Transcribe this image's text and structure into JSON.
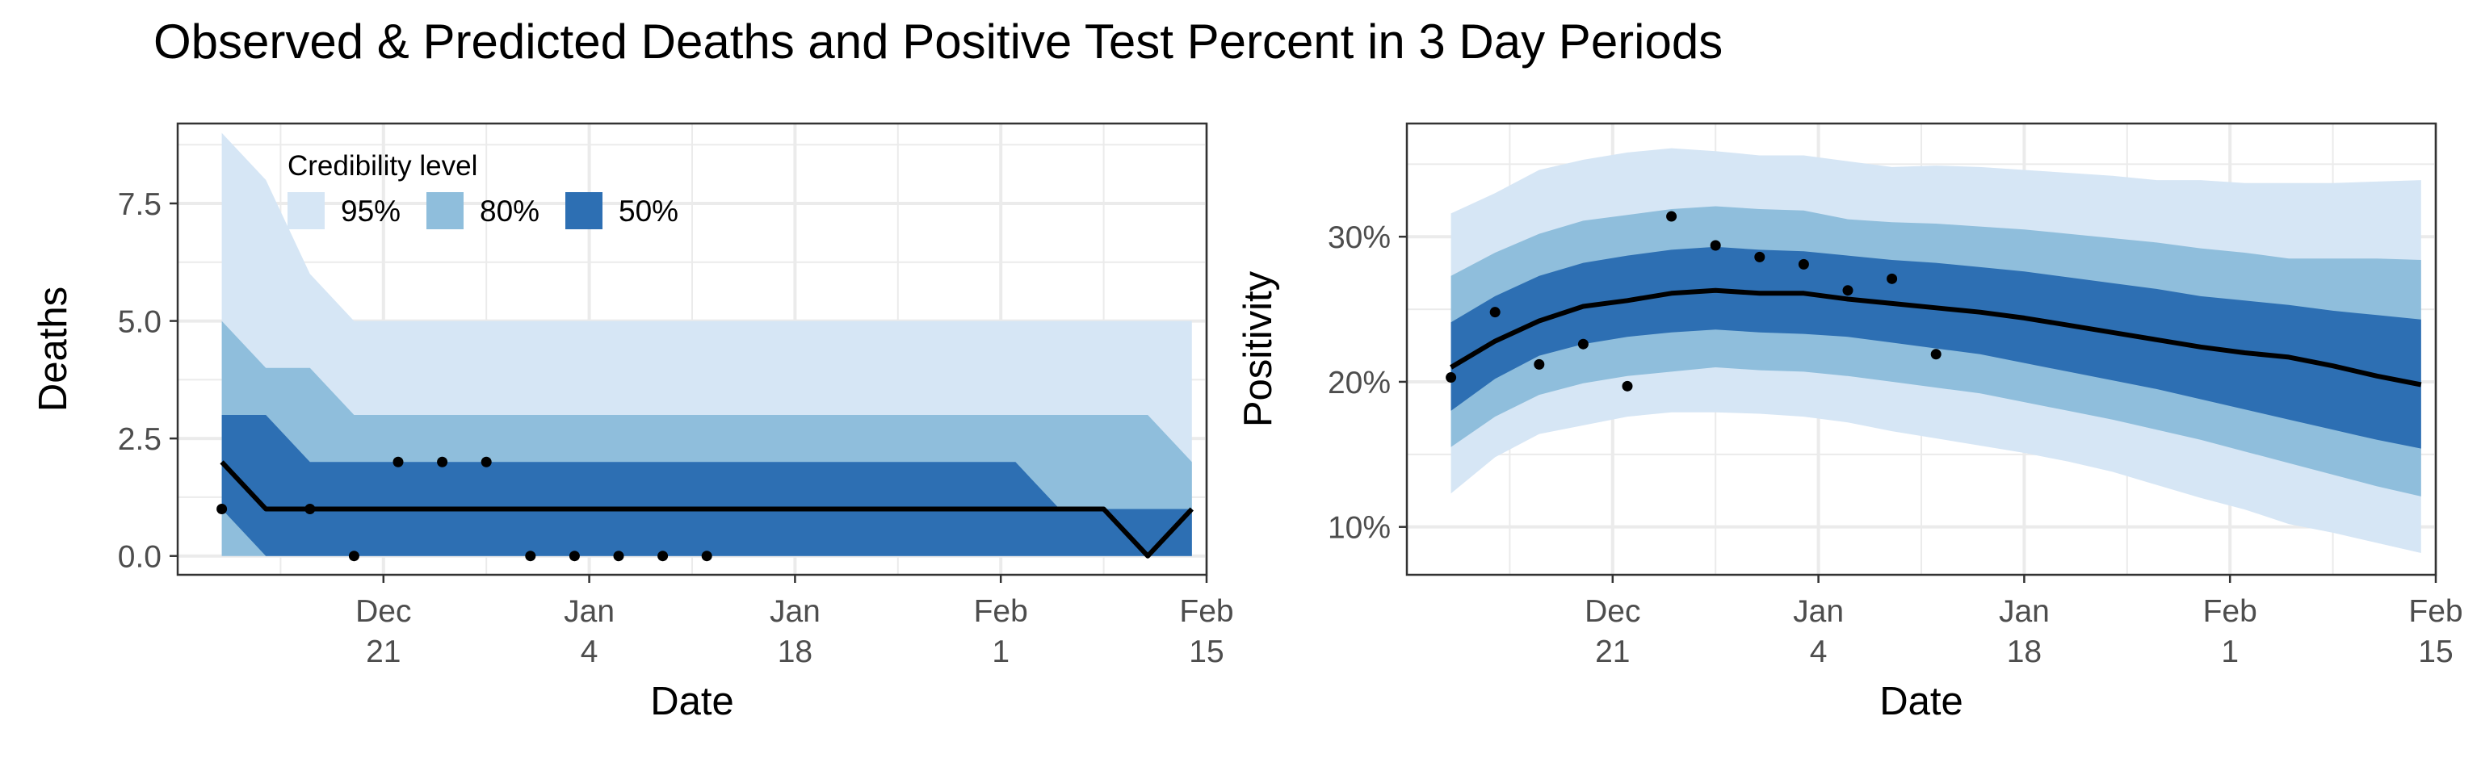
{
  "figure": {
    "title": "Observed & Predicted Deaths and Positive Test Percent in 3 Day Periods"
  },
  "legend": {
    "title": "Credibility level",
    "items": [
      {
        "label": "95%",
        "color": "#d6e6f5"
      },
      {
        "label": "80%",
        "color": "#8fbedc"
      },
      {
        "label": "50%",
        "color": "#2d6fb3"
      }
    ]
  },
  "colors": {
    "band95": "#d6e6f5",
    "band80": "#8fbedc",
    "band50": "#2d6fb3",
    "median": "#000000",
    "observed": "#000000",
    "grid": "#ebebeb",
    "panel_border": "#333333"
  },
  "chart_data": [
    {
      "type": "area",
      "xlabel": "Date",
      "ylabel": "Deaths",
      "xlim": [
        "2020-12-07",
        "2021-02-15"
      ],
      "ylim": [
        -0.4,
        9.2
      ],
      "x_ticks": [
        {
          "date": "2020-12-21",
          "line1": "Dec",
          "line2": "21"
        },
        {
          "date": "2021-01-04",
          "line1": "Jan",
          "line2": "4"
        },
        {
          "date": "2021-01-18",
          "line1": "Jan",
          "line2": "18"
        },
        {
          "date": "2021-02-01",
          "line1": "Feb",
          "line2": "1"
        },
        {
          "date": "2021-02-15",
          "line1": "Feb",
          "line2": "15"
        }
      ],
      "y_ticks": [
        {
          "value": 0,
          "label": "0.0"
        },
        {
          "value": 2.5,
          "label": "2.5"
        },
        {
          "value": 5,
          "label": "5.0"
        },
        {
          "value": 7.5,
          "label": "7.5"
        }
      ],
      "x": [
        "2020-12-10",
        "2020-12-13",
        "2020-12-16",
        "2020-12-19",
        "2020-12-22",
        "2020-12-25",
        "2020-12-28",
        "2020-12-31",
        "2021-01-03",
        "2021-01-06",
        "2021-01-09",
        "2021-01-12",
        "2021-01-15",
        "2021-01-18",
        "2021-01-21",
        "2021-01-24",
        "2021-01-27",
        "2021-01-30",
        "2021-02-02",
        "2021-02-05",
        "2021-02-08",
        "2021-02-11",
        "2021-02-14"
      ],
      "bands": {
        "95": {
          "lower": [
            0,
            0,
            0,
            0,
            0,
            0,
            0,
            0,
            0,
            0,
            0,
            0,
            0,
            0,
            0,
            0,
            0,
            0,
            0,
            0,
            0,
            0,
            0
          ],
          "upper": [
            9,
            8,
            6,
            5,
            5,
            5,
            5,
            5,
            5,
            5,
            5,
            5,
            5,
            5,
            5,
            5,
            5,
            5,
            5,
            5,
            5,
            5,
            5
          ]
        },
        "80": {
          "lower": [
            0,
            0,
            0,
            0,
            0,
            0,
            0,
            0,
            0,
            0,
            0,
            0,
            0,
            0,
            0,
            0,
            0,
            0,
            0,
            0,
            0,
            0,
            0
          ],
          "upper": [
            5,
            4,
            4,
            3,
            3,
            3,
            3,
            3,
            3,
            3,
            3,
            3,
            3,
            3,
            3,
            3,
            3,
            3,
            3,
            3,
            3,
            3,
            2
          ]
        },
        "50": {
          "lower": [
            1,
            0,
            0,
            0,
            0,
            0,
            0,
            0,
            0,
            0,
            0,
            0,
            0,
            0,
            0,
            0,
            0,
            0,
            0,
            0,
            0,
            0,
            0
          ],
          "upper": [
            3,
            3,
            2,
            2,
            2,
            2,
            2,
            2,
            2,
            2,
            2,
            2,
            2,
            2,
            2,
            2,
            2,
            2,
            2,
            1,
            1,
            1,
            1
          ]
        }
      },
      "median": [
        2,
        1,
        1,
        1,
        1,
        1,
        1,
        1,
        1,
        1,
        1,
        1,
        1,
        1,
        1,
        1,
        1,
        1,
        1,
        1,
        1,
        0,
        1
      ],
      "observed": [
        {
          "x": "2020-12-10",
          "y": 1
        },
        {
          "x": "2020-12-16",
          "y": 1
        },
        {
          "x": "2020-12-19",
          "y": 0
        },
        {
          "x": "2020-12-22",
          "y": 2
        },
        {
          "x": "2020-12-25",
          "y": 2
        },
        {
          "x": "2020-12-28",
          "y": 2
        },
        {
          "x": "2020-12-31",
          "y": 0
        },
        {
          "x": "2021-01-03",
          "y": 0
        },
        {
          "x": "2021-01-06",
          "y": 0
        },
        {
          "x": "2021-01-09",
          "y": 0
        },
        {
          "x": "2021-01-12",
          "y": 0
        }
      ]
    },
    {
      "type": "area",
      "xlabel": "Date",
      "ylabel": "Positivity",
      "xlim": [
        "2020-12-07",
        "2021-02-15"
      ],
      "ylim": [
        6.7,
        37.8
      ],
      "x_ticks": [
        {
          "date": "2020-12-21",
          "line1": "Dec",
          "line2": "21"
        },
        {
          "date": "2021-01-04",
          "line1": "Jan",
          "line2": "4"
        },
        {
          "date": "2021-01-18",
          "line1": "Jan",
          "line2": "18"
        },
        {
          "date": "2021-02-01",
          "line1": "Feb",
          "line2": "1"
        },
        {
          "date": "2021-02-15",
          "line1": "Feb",
          "line2": "15"
        }
      ],
      "y_ticks": [
        {
          "value": 10,
          "label": "10%"
        },
        {
          "value": 20,
          "label": "20%"
        },
        {
          "value": 30,
          "label": "30%"
        }
      ],
      "x": [
        "2020-12-10",
        "2020-12-13",
        "2020-12-16",
        "2020-12-19",
        "2020-12-22",
        "2020-12-25",
        "2020-12-28",
        "2020-12-31",
        "2021-01-03",
        "2021-01-06",
        "2021-01-09",
        "2021-01-12",
        "2021-01-15",
        "2021-01-18",
        "2021-01-21",
        "2021-01-24",
        "2021-01-27",
        "2021-01-30",
        "2021-02-02",
        "2021-02-05",
        "2021-02-08",
        "2021-02-11",
        "2021-02-14"
      ],
      "bands": {
        "95": {
          "lower": [
            12.3,
            14.8,
            16.4,
            17.0,
            17.6,
            17.9,
            17.9,
            17.8,
            17.6,
            17.2,
            16.6,
            16.1,
            15.6,
            15.1,
            14.5,
            13.8,
            12.9,
            12.0,
            11.2,
            10.2,
            9.6,
            8.9,
            8.2
          ],
          "upper": [
            31.6,
            33.0,
            34.6,
            35.3,
            35.8,
            36.1,
            35.9,
            35.6,
            35.6,
            35.2,
            34.8,
            34.9,
            34.8,
            34.6,
            34.4,
            34.2,
            33.9,
            33.9,
            33.7,
            33.7,
            33.7,
            33.8,
            33.9
          ]
        },
        "80": {
          "lower": [
            15.5,
            17.6,
            19.1,
            19.9,
            20.4,
            20.7,
            21.0,
            20.8,
            20.7,
            20.4,
            20.0,
            19.6,
            19.2,
            18.6,
            18.0,
            17.4,
            16.7,
            16.0,
            15.2,
            14.4,
            13.6,
            12.8,
            12.1
          ],
          "upper": [
            27.3,
            28.9,
            30.2,
            31.1,
            31.5,
            31.9,
            32.1,
            31.9,
            31.8,
            31.2,
            31.0,
            30.9,
            30.7,
            30.5,
            30.2,
            29.9,
            29.6,
            29.2,
            28.9,
            28.5,
            28.5,
            28.5,
            28.4
          ]
        },
        "50": {
          "lower": [
            18.0,
            20.2,
            21.8,
            22.6,
            23.1,
            23.4,
            23.6,
            23.4,
            23.3,
            23.1,
            22.7,
            22.3,
            21.9,
            21.3,
            20.7,
            20.1,
            19.5,
            18.8,
            18.1,
            17.4,
            16.7,
            16.0,
            15.4
          ],
          "upper": [
            24.1,
            25.9,
            27.3,
            28.2,
            28.7,
            29.1,
            29.3,
            29.1,
            29.0,
            28.7,
            28.4,
            28.2,
            27.9,
            27.6,
            27.2,
            26.8,
            26.4,
            25.9,
            25.6,
            25.3,
            24.9,
            24.6,
            24.3
          ]
        },
        "_": {}
      },
      "median": [
        21.0,
        22.8,
        24.2,
        25.2,
        25.6,
        26.1,
        26.3,
        26.1,
        26.1,
        25.7,
        25.4,
        25.1,
        24.8,
        24.4,
        23.9,
        23.4,
        22.9,
        22.4,
        22.0,
        21.7,
        21.1,
        20.4,
        19.8
      ],
      "observed": [
        {
          "x": "2020-12-10",
          "y": 20.3
        },
        {
          "x": "2020-12-13",
          "y": 24.8
        },
        {
          "x": "2020-12-16",
          "y": 21.2
        },
        {
          "x": "2020-12-19",
          "y": 22.6
        },
        {
          "x": "2020-12-22",
          "y": 19.7
        },
        {
          "x": "2020-12-25",
          "y": 31.4
        },
        {
          "x": "2020-12-28",
          "y": 29.4
        },
        {
          "x": "2020-12-31",
          "y": 28.6
        },
        {
          "x": "2021-01-03",
          "y": 28.1
        },
        {
          "x": "2021-01-06",
          "y": 26.3
        },
        {
          "x": "2021-01-09",
          "y": 27.1
        },
        {
          "x": "2021-01-12",
          "y": 21.9
        }
      ]
    }
  ]
}
